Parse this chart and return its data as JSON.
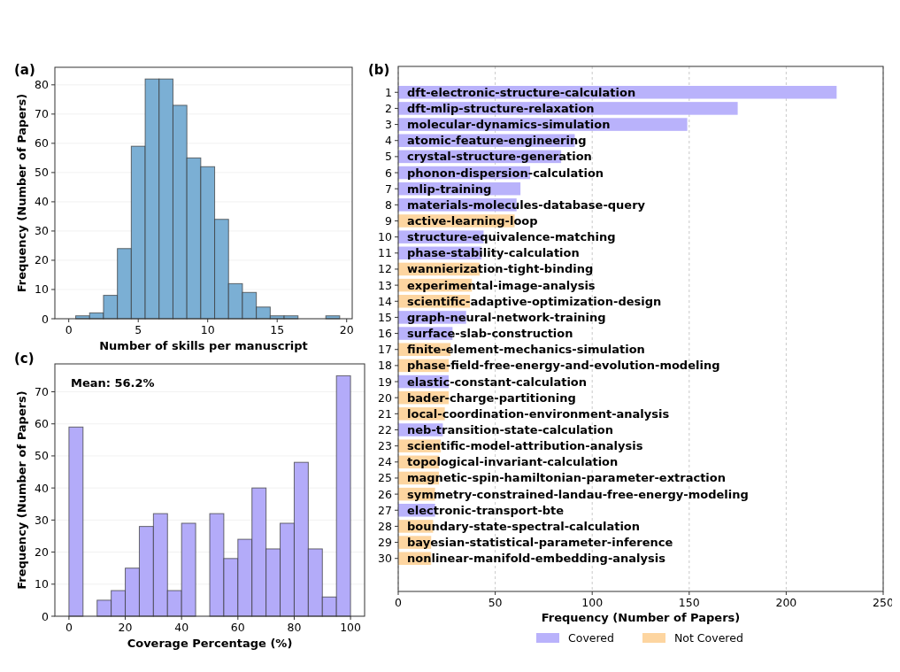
{
  "chart_data": [
    {
      "type": "histogram",
      "title": "(a)",
      "xlabel": "Number of skills per manuscript",
      "ylabel": "Frequency (Number of Papers)",
      "color": "#7bafd4",
      "bins": [
        0.5,
        1.5,
        2.5,
        3.5,
        4.5,
        5.5,
        6.5,
        7.5,
        8.5,
        9.5,
        10.5,
        11.5,
        12.5,
        13.5,
        14.5,
        15.5,
        16.5,
        17.5,
        18.5,
        19.5
      ],
      "values": [
        1,
        2,
        8,
        24,
        59,
        82,
        82,
        73,
        55,
        52,
        34,
        12,
        9,
        4,
        1,
        1,
        0,
        0,
        1
      ],
      "xlim": [
        -1,
        20.4
      ],
      "xticks": [
        0,
        5,
        10,
        15,
        20
      ],
      "ylim": [
        0,
        86
      ],
      "yticks": [
        0,
        10,
        20,
        30,
        40,
        50,
        60,
        70,
        80
      ],
      "grid": "y"
    },
    {
      "type": "bar",
      "orientation": "horizontal",
      "title": "(b)",
      "xlabel": "Frequency (Number of Papers)",
      "categories": [
        "1",
        "2",
        "3",
        "4",
        "5",
        "6",
        "7",
        "8",
        "9",
        "10",
        "11",
        "12",
        "13",
        "14",
        "15",
        "16",
        "17",
        "18",
        "19",
        "20",
        "21",
        "22",
        "23",
        "24",
        "25",
        "26",
        "27",
        "28",
        "29",
        "30"
      ],
      "series": [
        {
          "name": "Covered",
          "color": "#b9b2fb",
          "values": [
            226,
            175,
            149,
            91,
            84,
            68,
            63,
            61,
            null,
            44,
            43,
            null,
            null,
            null,
            35,
            28,
            null,
            null,
            26,
            null,
            null,
            23,
            null,
            null,
            null,
            null,
            19,
            null,
            null,
            null
          ]
        },
        {
          "name": "Not Covered",
          "color": "#fdd5a0",
          "values": [
            null,
            null,
            null,
            null,
            null,
            null,
            null,
            null,
            60,
            null,
            null,
            42,
            38,
            37,
            null,
            null,
            27,
            26,
            null,
            26,
            24,
            null,
            22,
            21,
            21,
            19,
            null,
            18,
            17,
            17
          ]
        }
      ],
      "annotations": [
        "dft-electronic-structure-calculation",
        "dft-mlip-structure-relaxation",
        "molecular-dynamics-simulation",
        "atomic-feature-engineering",
        "crystal-structure-generation",
        "phonon-dispersion-calculation",
        "mlip-training",
        "materials-molecules-database-query",
        "active-learning-loop",
        "structure-equivalence-matching",
        "phase-stability-calculation",
        "wannierization-tight-binding",
        "experimental-image-analysis",
        "scientific-adaptive-optimization-design",
        "graph-neural-network-training",
        "surface-slab-construction",
        "finite-element-mechanics-simulation",
        "phase-field-free-energy-and-evolution-modeling",
        "elastic-constant-calculation",
        "bader-charge-partitioning",
        "local-coordination-environment-analysis",
        "neb-transition-state-calculation",
        "scientific-model-attribution-analysis",
        "topological-invariant-calculation",
        "magnetic-spin-hamiltonian-parameter-extraction",
        "symmetry-constrained-landau-free-energy-modeling",
        "electronic-transport-bte",
        "boundary-state-spectral-calculation",
        "bayesian-statistical-parameter-inference",
        "nonlinear-manifold-embedding-analysis"
      ],
      "xlim": [
        0,
        250
      ],
      "xticks": [
        0,
        50,
        100,
        150,
        200,
        250
      ],
      "grid": "x",
      "legend": "bottom"
    },
    {
      "type": "histogram",
      "title": "(c)",
      "xlabel": "Coverage Percentage (%)",
      "ylabel": "Frequency (Number of Papers)",
      "color": "#b3abf9",
      "bins": [
        0,
        5,
        10,
        15,
        20,
        25,
        30,
        35,
        40,
        45,
        50,
        55,
        60,
        65,
        70,
        75,
        80,
        85,
        90,
        95,
        100
      ],
      "values": [
        59,
        0,
        5,
        8,
        15,
        28,
        32,
        8,
        29,
        0,
        32,
        18,
        24,
        40,
        21,
        29,
        48,
        21,
        6,
        75
      ],
      "annotations": [
        "Mean: 56.2%"
      ],
      "xlim": [
        -5,
        105
      ],
      "xticks": [
        0,
        20,
        40,
        60,
        80,
        100
      ],
      "ylim": [
        0,
        78.7
      ],
      "yticks": [
        0,
        10,
        20,
        30,
        40,
        50,
        60,
        70
      ],
      "grid": "y"
    }
  ]
}
